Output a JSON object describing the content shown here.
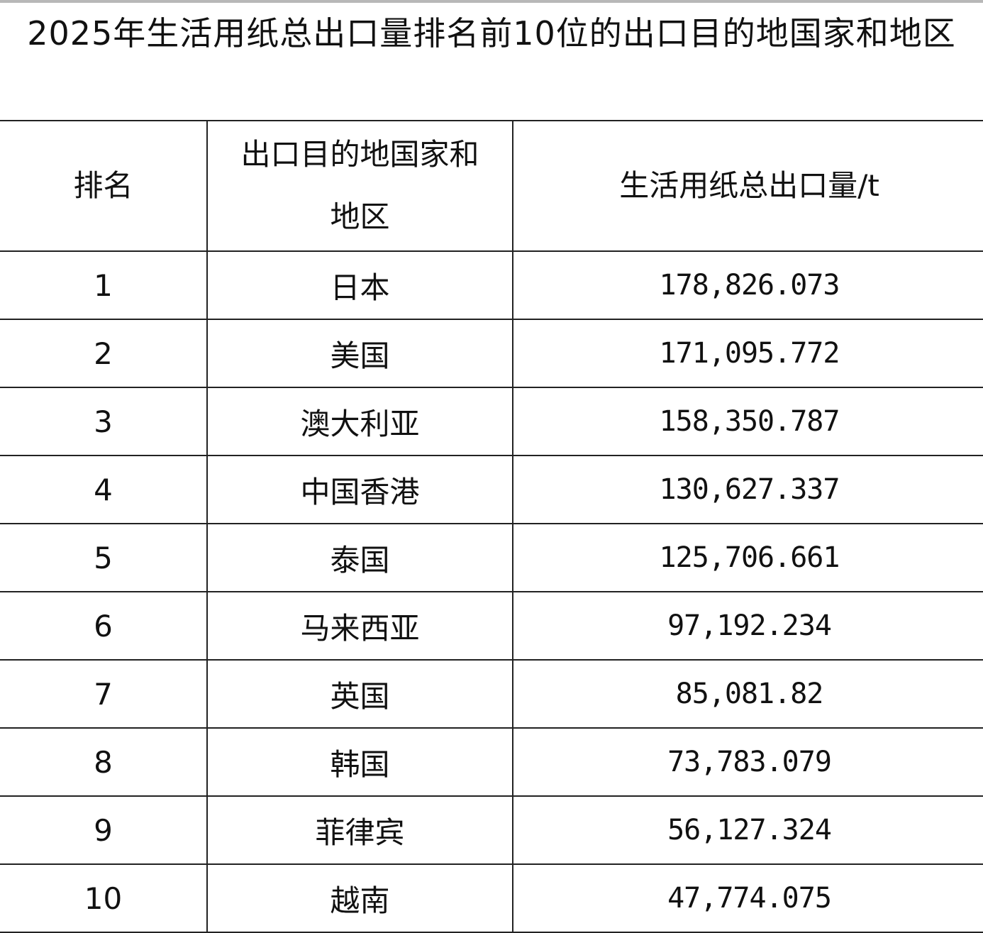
{
  "title": "2025年生活用纸总出口量排名前10位的出口目的地国家和地区",
  "table": {
    "headers": [
      "排名",
      "出口目的地国家和地区",
      "生活用纸总出口量/t"
    ],
    "rows": [
      [
        "1",
        "日本",
        "178,826.073"
      ],
      [
        "2",
        "美国",
        "171,095.772"
      ],
      [
        "3",
        "澳大利亚",
        "158,350.787"
      ],
      [
        "4",
        "中国香港",
        "130,627.337"
      ],
      [
        "5",
        "泰国",
        "125,706.661"
      ],
      [
        "6",
        "马来西亚",
        "97,192.234"
      ],
      [
        "7",
        "英国",
        "85,081.82"
      ],
      [
        "8",
        "韩国",
        "73,783.079"
      ],
      [
        "9",
        "菲律宾",
        "56,127.324"
      ],
      [
        "10",
        "越南",
        "47,774.075"
      ]
    ]
  }
}
